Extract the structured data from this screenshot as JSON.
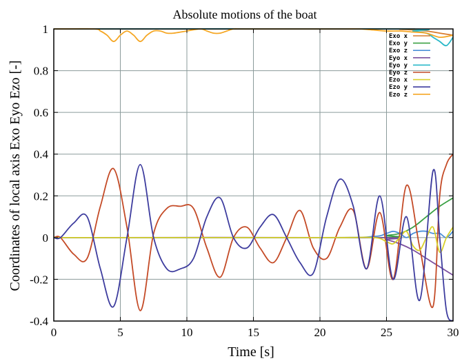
{
  "chart_data": {
    "type": "line",
    "title": "Absolute motions of the boat",
    "xlabel": "Time [s]",
    "ylabel": "Coordinates of local axis Exo Eyo Ezo [-]",
    "xlim": [
      0,
      30
    ],
    "ylim": [
      -0.4,
      1.0
    ],
    "xticks": [
      0,
      5,
      10,
      15,
      20,
      25,
      30
    ],
    "yticks": [
      -0.4,
      -0.2,
      0,
      0.2,
      0.4,
      0.6,
      0.8,
      1
    ],
    "xtick_labels": [
      "0",
      "5",
      "10",
      "15",
      "20",
      "25",
      "30"
    ],
    "ytick_labels": [
      "-0.4",
      "-0.2",
      "0",
      "0.2",
      "0.4",
      "0.6",
      "0.8",
      "1"
    ],
    "grid": true,
    "legend_position": "top-right",
    "series": [
      {
        "name": "Exo x",
        "color": "#d97a2b",
        "x": [
          0,
          25,
          26,
          27,
          28,
          29,
          30
        ],
        "y": [
          1.0,
          1.0,
          0.998,
          0.995,
          0.99,
          0.98,
          0.97
        ]
      },
      {
        "name": "Exo y",
        "color": "#3aa043",
        "x": [
          0,
          24,
          25,
          26,
          27,
          28,
          29,
          30
        ],
        "y": [
          0,
          0,
          0.01,
          0.02,
          0.05,
          0.1,
          0.15,
          0.19
        ]
      },
      {
        "name": "Exo z",
        "color": "#4a8fd8",
        "x": [
          0,
          20,
          24,
          25,
          25.5,
          26,
          26.5,
          27,
          27.5,
          28,
          28.5,
          29,
          29.5,
          30
        ],
        "y": [
          0,
          0,
          0.005,
          0.02,
          0.03,
          0.02,
          0.0,
          0.02,
          0.03,
          0.03,
          0.02,
          0.02,
          0.0,
          0.03
        ]
      },
      {
        "name": "Eyo x",
        "color": "#7b4f9e",
        "x": [
          0,
          24,
          25,
          26,
          27,
          28,
          29,
          30
        ],
        "y": [
          0,
          0,
          -0.01,
          -0.03,
          -0.06,
          -0.1,
          -0.14,
          -0.18
        ]
      },
      {
        "name": "Eyo y",
        "color": "#28b8c8",
        "x": [
          0,
          26,
          27,
          28,
          28.5,
          29,
          29.5,
          30
        ],
        "y": [
          1.0,
          1.0,
          0.99,
          0.98,
          0.96,
          0.94,
          0.92,
          0.96
        ]
      },
      {
        "name": "Eyo z",
        "color": "#c44a26",
        "x": [
          0,
          0.5,
          1.5,
          2.5,
          3.5,
          4.5,
          5.5,
          6.5,
          7.5,
          8.5,
          9.5,
          10.5,
          11.5,
          12.5,
          13.5,
          14.5,
          15.5,
          16.5,
          17.5,
          18.5,
          19.5,
          20.5,
          21.5,
          22.5,
          23.5,
          24.5,
          25.5,
          26.5,
          27.5,
          28.5,
          29,
          29.5,
          30
        ],
        "y": [
          0,
          0.0,
          -0.08,
          -0.1,
          0.15,
          0.33,
          0.05,
          -0.35,
          0.02,
          0.14,
          0.15,
          0.14,
          -0.05,
          -0.19,
          0.0,
          0.05,
          -0.05,
          -0.12,
          0.0,
          0.13,
          -0.05,
          -0.1,
          0.05,
          0.13,
          -0.15,
          0.12,
          -0.2,
          0.25,
          -0.05,
          -0.33,
          0.2,
          0.35,
          0.4
        ]
      },
      {
        "name": "Ezo x",
        "color": "#d8d02a",
        "x": [
          0,
          20,
          24,
          25,
          25.5,
          26,
          26.5,
          27,
          27.5,
          28,
          28.5,
          29,
          29.5,
          30
        ],
        "y": [
          0,
          0,
          0.0,
          -0.02,
          -0.03,
          0.0,
          0.03,
          -0.04,
          -0.06,
          0.0,
          0.05,
          -0.07,
          0.0,
          0.05
        ]
      },
      {
        "name": "Ezo y",
        "color": "#3d3c9e",
        "x": [
          0,
          0.5,
          1.5,
          2.5,
          3.5,
          4.5,
          5.5,
          6.5,
          7.5,
          8.5,
          9.5,
          10.5,
          11.5,
          12.5,
          13.5,
          14.5,
          15.5,
          16.5,
          17.5,
          18.5,
          19.5,
          20.5,
          21.5,
          22.5,
          23.5,
          24.5,
          25.5,
          26.5,
          27.5,
          28.5,
          29,
          29.5,
          30
        ],
        "y": [
          0,
          0.0,
          0.07,
          0.1,
          -0.15,
          -0.33,
          0.0,
          0.35,
          0.0,
          -0.15,
          -0.15,
          -0.1,
          0.1,
          0.19,
          0.0,
          -0.05,
          0.05,
          0.11,
          0.0,
          -0.12,
          -0.17,
          0.1,
          0.28,
          0.15,
          -0.15,
          0.2,
          -0.2,
          0.1,
          -0.3,
          0.32,
          0.0,
          -0.35,
          -0.4
        ]
      },
      {
        "name": "Ezo z",
        "color": "#f5a623",
        "x": [
          0,
          3,
          3.5,
          4,
          4.5,
          5,
          5.5,
          6,
          6.5,
          7,
          7.5,
          8,
          8.5,
          9,
          10,
          11,
          11.5,
          12,
          12.5,
          13,
          13.5,
          14,
          15,
          16,
          17,
          18,
          19,
          20,
          21,
          22,
          23,
          24,
          25,
          26,
          27,
          28,
          29,
          30
        ],
        "y": [
          1.0,
          1.0,
          0.99,
          0.97,
          0.94,
          0.97,
          0.99,
          0.97,
          0.94,
          0.97,
          0.99,
          0.99,
          0.98,
          0.98,
          0.99,
          1.0,
          0.99,
          0.98,
          0.98,
          0.99,
          1.0,
          1.0,
          1.0,
          1.0,
          1.0,
          1.0,
          1.0,
          1.0,
          1.0,
          1.0,
          1.0,
          0.995,
          0.99,
          0.99,
          0.985,
          0.98,
          0.96,
          0.97
        ]
      }
    ]
  }
}
